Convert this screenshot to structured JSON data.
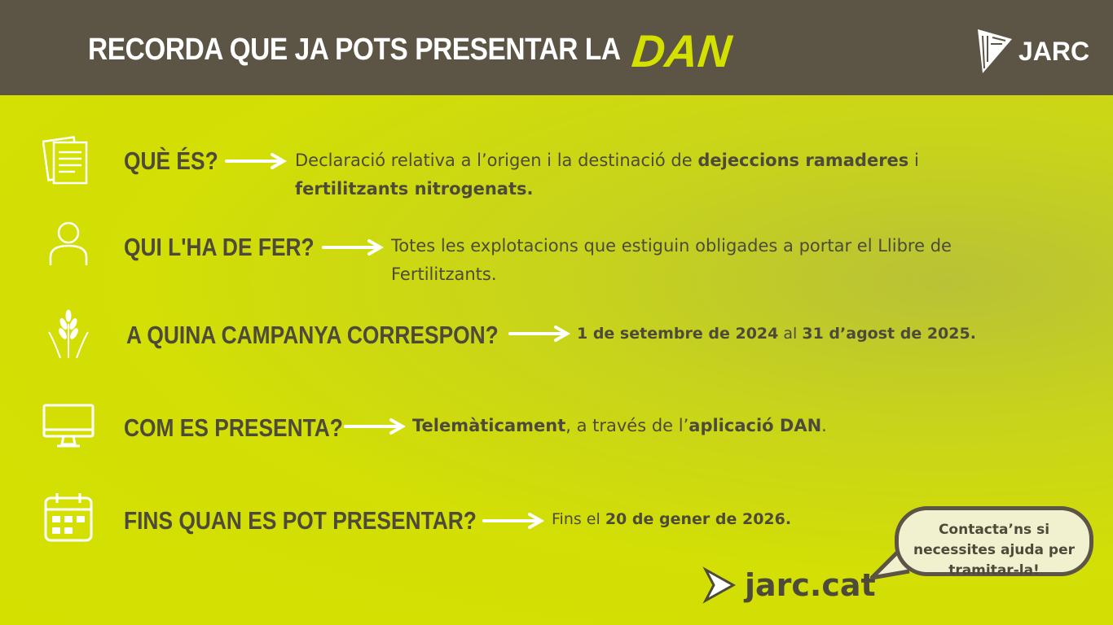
{
  "header": {
    "title": "RECORDA QUE JA POTS PRESENTAR LA",
    "highlight": "DAN",
    "logo": "JARC"
  },
  "colors": {
    "header": "#5c5444",
    "accent": "#d4e000",
    "text": "#4e4a3a",
    "bubble": "#f1f1cf"
  },
  "rows": [
    {
      "icon": "documents-icon",
      "heading": "QUÈ ÉS?",
      "parts": [
        {
          "t": "Declaració relativa a l’origen i la destinació de "
        },
        {
          "t": "dejeccions ramaderes",
          "b": true
        },
        {
          "t": " i "
        },
        {
          "t": "fertilitzants nitrogenats.",
          "b": true
        }
      ]
    },
    {
      "icon": "person-icon",
      "heading": "QUI L'HA DE FER?",
      "parts": [
        {
          "t": "Totes les explotacions que estiguin obligades a portar el Llibre de Fertilitzants."
        }
      ]
    },
    {
      "icon": "wheat-icon",
      "heading": "A QUINA CAMPANYA CORRESPON?",
      "parts": [
        {
          "t": "1 de setembre de 2024",
          "b": true
        },
        {
          "t": " al "
        },
        {
          "t": "31 d’agost de 2025.",
          "b": true
        }
      ]
    },
    {
      "icon": "monitor-icon",
      "heading": "COM ES PRESENTA?",
      "parts": [
        {
          "t": "Telemàticament",
          "b": true
        },
        {
          "t": ", a través de l’"
        },
        {
          "t": "aplicació DAN",
          "b": true
        },
        {
          "t": "."
        }
      ]
    },
    {
      "icon": "calendar-icon",
      "heading": "FINS QUAN ES POT PRESENTAR?",
      "parts": [
        {
          "t": "Fins el "
        },
        {
          "t": "20 de gener de 2026.",
          "b": true
        }
      ]
    }
  ],
  "footer": {
    "website": "jarc.cat",
    "bubble": "Contacta’ns si necessites ajuda per tramitar-la!"
  }
}
